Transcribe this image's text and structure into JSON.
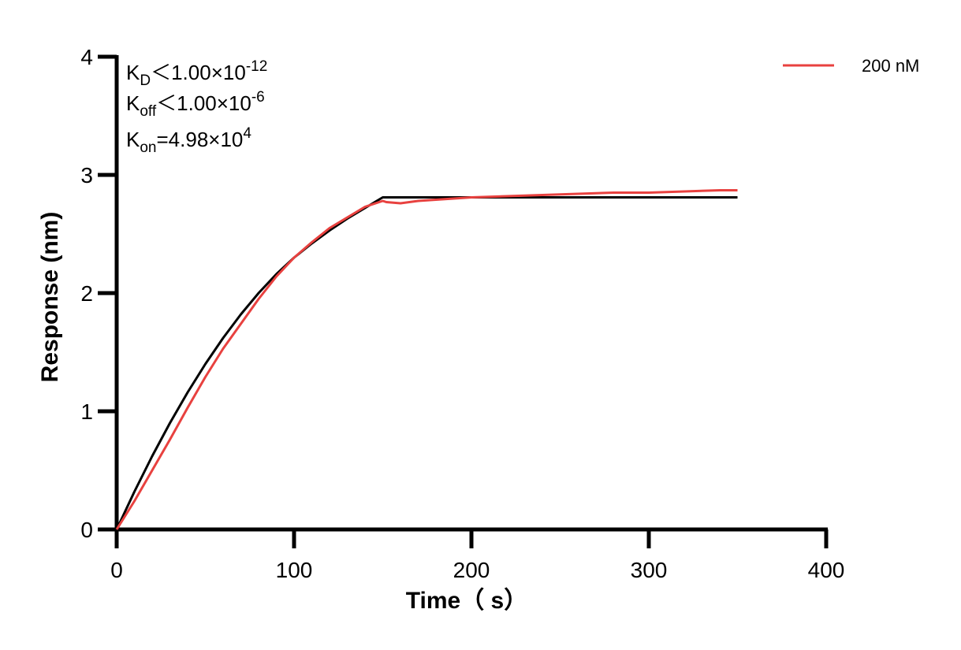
{
  "chart_data": {
    "type": "line",
    "xlabel": "Time（ s）",
    "ylabel": "Response (nm)",
    "xlim": [
      0,
      400
    ],
    "ylim": [
      0,
      4
    ],
    "x_ticks": [
      0,
      100,
      200,
      300,
      400
    ],
    "y_ticks": [
      0,
      1,
      2,
      3,
      4
    ],
    "x_tick_labels": [
      "0",
      "100",
      "200",
      "300",
      "400"
    ],
    "y_tick_labels": [
      "0",
      "1",
      "2",
      "3",
      "4"
    ],
    "grid": false,
    "legend_position": "top-right",
    "annotations": {
      "kd": {
        "sym": "K",
        "sub": "D",
        "rel": "＜",
        "mant": "1.00×10",
        "exp": "-12"
      },
      "koff": {
        "sym": "K",
        "sub": "off",
        "rel": "＜",
        "mant": "1.00×10",
        "exp": "-6"
      },
      "kon": {
        "sym": "K",
        "sub": "on",
        "rel": "=",
        "mant": "4.98×10",
        "exp": "4"
      }
    },
    "series": [
      {
        "name": "200 nM",
        "color": "#e8413f",
        "role": "measured",
        "x": [
          0,
          10,
          20,
          30,
          40,
          50,
          60,
          70,
          80,
          90,
          100,
          110,
          120,
          130,
          140,
          150,
          152,
          160,
          170,
          180,
          190,
          200,
          220,
          240,
          260,
          280,
          300,
          320,
          340,
          350
        ],
        "y": [
          0,
          0.24,
          0.5,
          0.76,
          1.03,
          1.29,
          1.53,
          1.74,
          1.95,
          2.14,
          2.3,
          2.43,
          2.55,
          2.64,
          2.73,
          2.78,
          2.77,
          2.76,
          2.78,
          2.79,
          2.8,
          2.81,
          2.82,
          2.83,
          2.84,
          2.85,
          2.85,
          2.86,
          2.87,
          2.87
        ]
      },
      {
        "role": "fit",
        "color": "#000000",
        "x": [
          0,
          10,
          20,
          30,
          40,
          50,
          60,
          70,
          80,
          90,
          100,
          110,
          120,
          130,
          140,
          150,
          200,
          250,
          300,
          350
        ],
        "y": [
          0,
          0.32,
          0.62,
          0.9,
          1.16,
          1.4,
          1.62,
          1.82,
          2.0,
          2.16,
          2.3,
          2.42,
          2.53,
          2.63,
          2.72,
          2.81,
          2.81,
          2.81,
          2.81,
          2.81
        ]
      }
    ]
  }
}
